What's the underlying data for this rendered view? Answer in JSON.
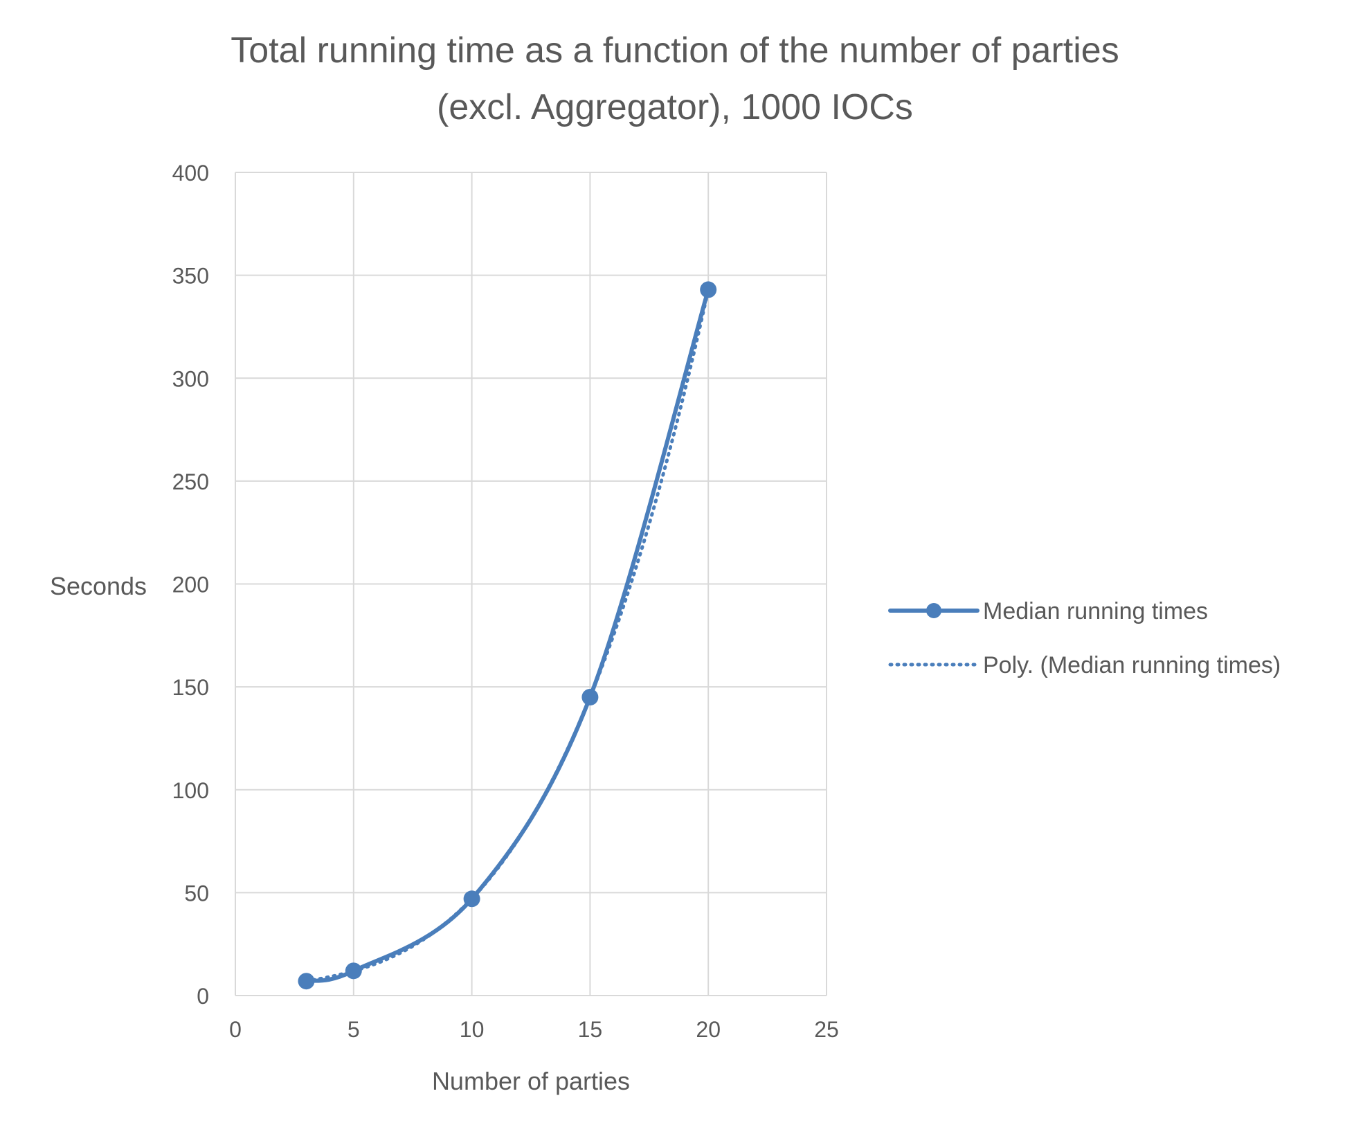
{
  "chart_data": {
    "type": "scatter",
    "title": "Total running time as a function of the number of parties",
    "subtitle": "(excl. Aggregator), 1000 IOCs",
    "xlabel": "Number of parties",
    "ylabel": "Seconds",
    "xlim": [
      0,
      25
    ],
    "ylim": [
      0,
      400
    ],
    "xticks": [
      0,
      5,
      10,
      15,
      20,
      25
    ],
    "yticks": [
      0,
      50,
      100,
      150,
      200,
      250,
      300,
      350,
      400
    ],
    "grid": true,
    "legend_position": "right",
    "series": [
      {
        "name": "Median running times",
        "style": "solid-smoothed-with-markers",
        "color": "#4a7ebb",
        "x": [
          3,
          5,
          10,
          15,
          20
        ],
        "y": [
          7,
          12,
          47,
          145,
          343
        ]
      }
    ],
    "trendline": {
      "name": "Poly. (Median running times)",
      "style": "dotted",
      "color": "#4a7ebb",
      "fit": "polynomial",
      "order": 3,
      "of_series": "Median running times"
    }
  }
}
